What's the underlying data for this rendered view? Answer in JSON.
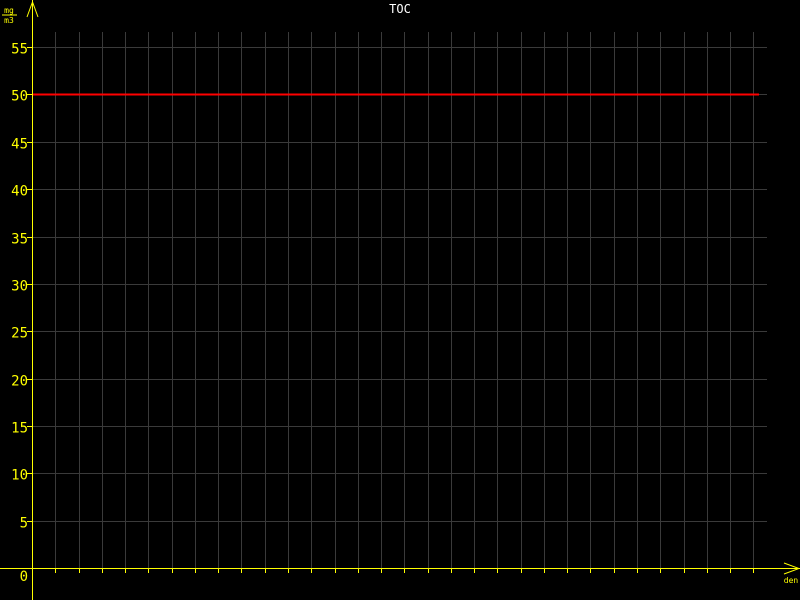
{
  "chart_data": {
    "type": "line",
    "title": "TOC",
    "ylabel_numerator": "mg",
    "ylabel_denominator": "m3",
    "xlabel": "den",
    "ylim": [
      0,
      55
    ],
    "yticks": [
      "0",
      "5",
      "10",
      "15",
      "20",
      "25",
      "30",
      "35",
      "40",
      "45",
      "50",
      "55"
    ],
    "x_tick_count": 31,
    "grid": true,
    "series": [
      {
        "values": [
          50,
          50
        ],
        "color": "#ff0000"
      }
    ],
    "colors": {
      "background": "#000000",
      "axis": "#ffff00",
      "grid": "#3a3a3a",
      "title": "#ffffff"
    }
  }
}
